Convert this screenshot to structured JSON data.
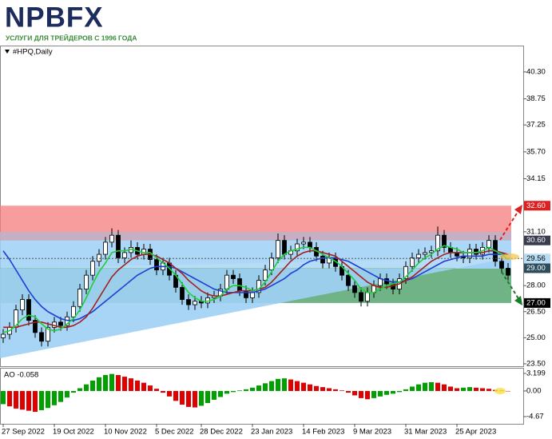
{
  "header": {
    "logo": "NPBFX",
    "tagline": "УСЛУГИ ДЛЯ ТРЕЙДЕРОВ С 1996 ГОДА"
  },
  "chart_data": [
    {
      "type": "candlestick",
      "title": "#HPQ,Daily",
      "categories": [
        "27 Sep 2022",
        null,
        null,
        null,
        null,
        null,
        null,
        null,
        "19 Oct 2022",
        null,
        null,
        null,
        null,
        null,
        null,
        null,
        "10 Nov 2022",
        null,
        null,
        null,
        null,
        null,
        null,
        null,
        "5 Dec 2022",
        null,
        null,
        null,
        null,
        null,
        null,
        "28 Dec 2022",
        null,
        null,
        null,
        null,
        null,
        null,
        null,
        "23 Jan 2023",
        null,
        null,
        null,
        null,
        null,
        null,
        null,
        "14 Feb 2023",
        null,
        null,
        null,
        null,
        null,
        null,
        null,
        "9 Mar 2023",
        null,
        null,
        null,
        null,
        null,
        null,
        null,
        "31 Mar 2023",
        null,
        null,
        null,
        null,
        null,
        null,
        null,
        "25 Apr 2023",
        null,
        null,
        null,
        null,
        null,
        null,
        null,
        null
      ],
      "open": [
        25.0,
        25.2,
        25.6,
        26.6,
        27.2,
        26.0,
        25.3,
        24.8,
        25.6,
        25.9,
        25.7,
        26.2,
        26.8,
        27.8,
        28.6,
        29.4,
        29.8,
        30.5,
        30.9,
        29.6,
        29.9,
        30.2,
        29.8,
        30.1,
        29.5,
        28.9,
        29.3,
        28.6,
        27.9,
        27.2,
        26.9,
        27.1,
        27.0,
        27.3,
        27.4,
        27.8,
        28.6,
        28.4,
        27.7,
        27.3,
        27.6,
        28.3,
        28.9,
        29.6,
        30.6,
        29.8,
        30.0,
        30.4,
        30.5,
        30.2,
        29.7,
        29.3,
        29.6,
        29.1,
        28.6,
        28.0,
        27.6,
        27.1,
        27.6,
        28.0,
        28.4,
        28.1,
        27.8,
        28.4,
        29.1,
        29.6,
        29.8,
        29.9,
        30.0,
        30.9,
        30.2,
        29.9,
        29.7,
        29.6,
        30.1,
        29.8,
        30.2,
        30.6,
        29.4,
        29.0
      ],
      "high": [
        25.5,
        25.9,
        26.9,
        27.5,
        27.5,
        26.3,
        25.6,
        25.9,
        26.2,
        26.2,
        26.5,
        27.1,
        28.1,
        28.9,
        29.7,
        30.1,
        30.8,
        31.3,
        31.2,
        30.2,
        30.6,
        30.5,
        30.4,
        30.4,
        29.8,
        29.6,
        29.6,
        28.9,
        28.2,
        27.5,
        27.4,
        27.4,
        27.6,
        27.7,
        28.1,
        28.9,
        28.9,
        28.7,
        28.0,
        27.9,
        28.6,
        29.2,
        29.9,
        31.0,
        30.9,
        30.3,
        30.7,
        30.8,
        30.8,
        30.5,
        30.0,
        29.9,
        29.9,
        29.4,
        28.9,
        28.3,
        27.9,
        27.9,
        28.3,
        28.7,
        28.7,
        28.4,
        28.7,
        29.4,
        29.9,
        30.1,
        30.2,
        30.3,
        31.4,
        31.2,
        30.5,
        30.2,
        30.0,
        30.4,
        30.4,
        30.5,
        30.9,
        30.9,
        29.7,
        29.3
      ],
      "low": [
        24.7,
        24.9,
        25.3,
        26.3,
        25.7,
        25.0,
        24.5,
        24.5,
        25.3,
        25.4,
        25.4,
        25.9,
        26.5,
        27.5,
        28.3,
        29.1,
        29.5,
        30.2,
        29.3,
        29.3,
        29.6,
        29.5,
        29.5,
        29.2,
        28.6,
        28.6,
        28.3,
        27.6,
        26.9,
        26.6,
        26.6,
        26.7,
        26.7,
        27.0,
        27.1,
        27.5,
        28.1,
        27.4,
        27.0,
        27.0,
        27.3,
        28.0,
        28.6,
        29.3,
        29.5,
        29.5,
        29.7,
        30.1,
        29.9,
        29.4,
        29.0,
        29.0,
        28.8,
        28.3,
        27.7,
        27.3,
        26.8,
        26.8,
        27.3,
        27.7,
        27.8,
        27.5,
        27.5,
        28.1,
        28.8,
        29.3,
        29.5,
        29.6,
        29.7,
        29.9,
        29.6,
        29.4,
        29.3,
        29.3,
        29.5,
        29.5,
        29.9,
        29.1,
        28.7,
        28.3
      ],
      "close": [
        25.2,
        25.6,
        26.6,
        27.2,
        26.0,
        25.3,
        24.8,
        25.6,
        25.9,
        25.7,
        26.2,
        26.8,
        27.8,
        28.6,
        29.4,
        29.8,
        30.5,
        30.9,
        29.6,
        29.9,
        30.2,
        29.8,
        30.1,
        29.5,
        28.9,
        29.3,
        28.6,
        27.9,
        27.2,
        26.9,
        27.1,
        27.0,
        27.3,
        27.4,
        27.8,
        28.6,
        28.4,
        27.7,
        27.3,
        27.6,
        28.3,
        28.9,
        29.6,
        30.6,
        29.8,
        30.0,
        30.4,
        30.5,
        30.2,
        29.7,
        29.3,
        29.6,
        29.1,
        28.6,
        28.0,
        27.6,
        27.1,
        27.6,
        28.0,
        28.4,
        28.1,
        27.8,
        28.4,
        29.1,
        29.6,
        29.8,
        29.9,
        30.0,
        30.9,
        30.2,
        29.9,
        29.7,
        29.6,
        30.1,
        29.8,
        30.2,
        30.6,
        29.4,
        29.0,
        28.6
      ],
      "up_color": "#ffffff",
      "down_color": "#000000",
      "overlays": [
        {
          "color": "#1d3fd6",
          "values": [
            30.0,
            29.5,
            28.9,
            28.3,
            27.7,
            27.2,
            26.8,
            26.5,
            26.3,
            26.1,
            26.0,
            26.0,
            26.1,
            26.3,
            26.5,
            26.8,
            27.1,
            27.4,
            27.7,
            28.0,
            28.3,
            28.6,
            28.8,
            29.0,
            29.1,
            29.1,
            29.1,
            29.0,
            28.8,
            28.6,
            28.4,
            28.2,
            28.0,
            27.8,
            27.7,
            27.6,
            27.6,
            27.6,
            27.6,
            27.6,
            27.7,
            27.8,
            28.0,
            28.2,
            28.4,
            28.7,
            28.9,
            29.2,
            29.4,
            29.5,
            29.6,
            29.6,
            29.6,
            29.5,
            29.4,
            29.2,
            29.0,
            28.8,
            28.6,
            28.4,
            28.3,
            28.2,
            28.2,
            28.3,
            28.4,
            28.6,
            28.8,
            29.0,
            29.2,
            29.4,
            29.5,
            29.6,
            29.7,
            29.7,
            29.7,
            29.7,
            29.8,
            29.8,
            29.8,
            29.8
          ]
        },
        {
          "color": "#a32020",
          "values": [
            25.6,
            25.6,
            25.6,
            25.7,
            25.8,
            25.9,
            25.9,
            25.8,
            25.7,
            25.6,
            25.6,
            25.7,
            25.9,
            26.2,
            26.7,
            27.3,
            27.9,
            28.5,
            28.9,
            29.2,
            29.5,
            29.7,
            29.8,
            29.8,
            29.7,
            29.5,
            29.3,
            29.0,
            28.7,
            28.3,
            28.0,
            27.7,
            27.5,
            27.4,
            27.4,
            27.5,
            27.6,
            27.7,
            27.7,
            27.7,
            27.8,
            27.9,
            28.2,
            28.6,
            29.0,
            29.4,
            29.7,
            29.9,
            30.0,
            30.0,
            29.9,
            29.8,
            29.7,
            29.4,
            29.1,
            28.8,
            28.5,
            28.2,
            28.0,
            27.9,
            27.9,
            28.0,
            28.1,
            28.3,
            28.5,
            28.8,
            29.1,
            29.4,
            29.6,
            29.8,
            29.9,
            29.9,
            29.9,
            29.9,
            29.9,
            29.9,
            30.0,
            30.0,
            29.9,
            29.8
          ]
        },
        {
          "color": "#1fcf3a",
          "values": [
            25.3,
            25.4,
            25.7,
            26.1,
            26.3,
            26.2,
            25.8,
            25.5,
            25.4,
            25.5,
            25.8,
            26.1,
            26.6,
            27.3,
            28.1,
            28.8,
            29.3,
            29.9,
            30.0,
            30.0,
            30.1,
            30.0,
            29.9,
            29.9,
            29.6,
            29.3,
            29.0,
            28.6,
            28.1,
            27.6,
            27.3,
            27.1,
            27.1,
            27.2,
            27.4,
            27.8,
            28.0,
            28.0,
            27.9,
            27.7,
            27.8,
            28.2,
            28.8,
            29.4,
            29.8,
            30.0,
            30.1,
            30.2,
            30.2,
            30.0,
            29.8,
            29.6,
            29.4,
            29.1,
            28.7,
            28.3,
            27.8,
            27.6,
            27.6,
            27.8,
            28.0,
            28.1,
            28.2,
            28.5,
            28.9,
            29.3,
            29.6,
            29.8,
            30.1,
            30.3,
            30.2,
            30.1,
            29.9,
            29.9,
            29.9,
            30.0,
            30.2,
            30.0,
            29.8,
            29.5
          ]
        }
      ],
      "zones": [
        {
          "low": 27.0,
          "high": 29.0,
          "color": "#3f9a5e"
        },
        {
          "low": 29.0,
          "high": 31.1,
          "color": "#9fd0f5"
        },
        {
          "low": 30.6,
          "high": 32.6,
          "color": "#f47c7c"
        }
      ],
      "ylim": [
        23.36,
        41.77
      ],
      "yticks": [
        {
          "value": 40.3,
          "label": "40.30"
        },
        {
          "value": 38.75,
          "label": "38.75"
        },
        {
          "value": 37.25,
          "label": "37.25"
        },
        {
          "value": 35.7,
          "label": "35.70"
        },
        {
          "value": 34.15,
          "label": "34.15"
        },
        {
          "value": 31.1,
          "label": "31.10"
        },
        {
          "value": 28.0,
          "label": "28.00"
        },
        {
          "value": 26.5,
          "label": "26.50"
        },
        {
          "value": 25.0,
          "label": "25.00"
        },
        {
          "value": 23.5,
          "label": "23.50"
        }
      ],
      "markers": [
        {
          "value": 32.6,
          "label": "32.60",
          "color": "#e02020",
          "text_color": "#ffffff"
        },
        {
          "value": 30.6,
          "label": "30.60",
          "color": "#3b3b4f",
          "text_color": "#ffffff"
        },
        {
          "value": 29.56,
          "label": "29.56",
          "color": "#b9dcf5",
          "text_color": "#000000"
        },
        {
          "value": 29.0,
          "label": "29.00",
          "color": "#2e4d5c",
          "text_color": "#ffffff"
        },
        {
          "value": 27.0,
          "label": "27.00",
          "color": "#000000",
          "text_color": "#ffffff"
        }
      ]
    },
    {
      "type": "histogram-oscillator",
      "title": "AO -0.058",
      "values": [
        -2.4,
        -2.8,
        -3.2,
        -3.4,
        -3.6,
        -3.8,
        -3.5,
        -3.1,
        -2.6,
        -2.0,
        -1.2,
        -0.3,
        0.5,
        1.2,
        1.9,
        2.5,
        2.9,
        3.1,
        2.9,
        2.6,
        2.3,
        1.9,
        1.5,
        1.0,
        0.4,
        -0.3,
        -1.0,
        -1.8,
        -2.5,
        -2.9,
        -3.0,
        -2.7,
        -2.2,
        -1.6,
        -1.1,
        -0.5,
        -0.2,
        0.1,
        0.3,
        0.6,
        1.0,
        1.4,
        1.8,
        2.2,
        2.3,
        2.1,
        1.8,
        1.5,
        1.2,
        0.9,
        0.7,
        0.5,
        0.3,
        0.1,
        -0.3,
        -0.8,
        -1.3,
        -1.5,
        -1.3,
        -1.0,
        -0.7,
        -0.5,
        -0.2,
        0.3,
        0.8,
        1.2,
        1.5,
        1.6,
        1.5,
        1.2,
        0.8,
        0.5,
        0.6,
        0.7,
        0.6,
        0.5,
        0.4,
        0.2,
        0.1,
        -0.058
      ],
      "up_color": "#00a000",
      "down_color": "#e00000",
      "ylim": [
        -5.98,
        4.07
      ],
      "yticks": [
        3.199,
        {
          "value": 0,
          "label": "0.00"
        },
        {
          "value": -4.67,
          "label": "-4.67"
        }
      ]
    }
  ]
}
